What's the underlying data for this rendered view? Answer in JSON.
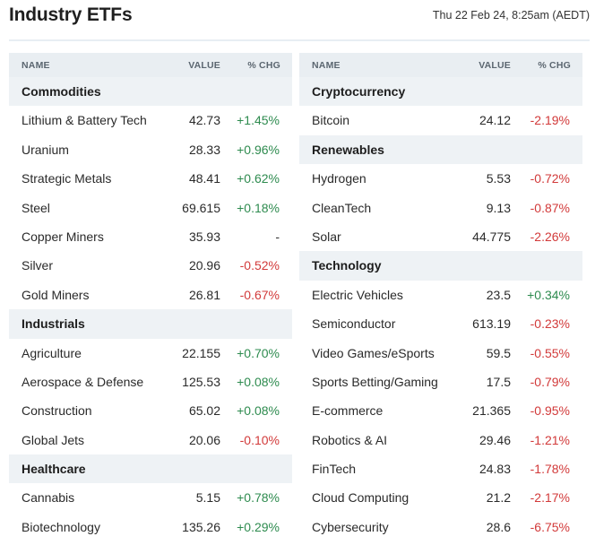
{
  "header": {
    "title": "Industry ETFs",
    "timestamp": "Thu 22 Feb 24, 8:25am (AEDT)"
  },
  "columns": {
    "name": "NAME",
    "value": "VALUE",
    "chg": "% CHG"
  },
  "colors": {
    "positive": "#2e8b4f",
    "negative": "#d23a3a",
    "category_bg": "#eef2f5",
    "header_bg": "#e9eef2"
  },
  "left_table": [
    {
      "type": "category",
      "name": "Commodities"
    },
    {
      "type": "item",
      "name": "Lithium & Battery Tech",
      "value": "42.73",
      "chg": "+1.45%",
      "dir": "pos"
    },
    {
      "type": "item",
      "name": "Uranium",
      "value": "28.33",
      "chg": "+0.96%",
      "dir": "pos"
    },
    {
      "type": "item",
      "name": "Strategic Metals",
      "value": "48.41",
      "chg": "+0.62%",
      "dir": "pos"
    },
    {
      "type": "item",
      "name": "Steel",
      "value": "69.615",
      "chg": "+0.18%",
      "dir": "pos"
    },
    {
      "type": "item",
      "name": "Copper Miners",
      "value": "35.93",
      "chg": "-",
      "dir": "neu"
    },
    {
      "type": "item",
      "name": "Silver",
      "value": "20.96",
      "chg": "-0.52%",
      "dir": "neg"
    },
    {
      "type": "item",
      "name": "Gold Miners",
      "value": "26.81",
      "chg": "-0.67%",
      "dir": "neg"
    },
    {
      "type": "category",
      "name": "Industrials"
    },
    {
      "type": "item",
      "name": "Agriculture",
      "value": "22.155",
      "chg": "+0.70%",
      "dir": "pos"
    },
    {
      "type": "item",
      "name": "Aerospace & Defense",
      "value": "125.53",
      "chg": "+0.08%",
      "dir": "pos"
    },
    {
      "type": "item",
      "name": "Construction",
      "value": "65.02",
      "chg": "+0.08%",
      "dir": "pos"
    },
    {
      "type": "item",
      "name": "Global Jets",
      "value": "20.06",
      "chg": "-0.10%",
      "dir": "neg"
    },
    {
      "type": "category",
      "name": "Healthcare"
    },
    {
      "type": "item",
      "name": "Cannabis",
      "value": "5.15",
      "chg": "+0.78%",
      "dir": "pos"
    },
    {
      "type": "item",
      "name": "Biotechnology",
      "value": "135.26",
      "chg": "+0.29%",
      "dir": "pos"
    }
  ],
  "right_table": [
    {
      "type": "category",
      "name": "Cryptocurrency"
    },
    {
      "type": "item",
      "name": "Bitcoin",
      "value": "24.12",
      "chg": "-2.19%",
      "dir": "neg"
    },
    {
      "type": "category",
      "name": "Renewables"
    },
    {
      "type": "item",
      "name": "Hydrogen",
      "value": "5.53",
      "chg": "-0.72%",
      "dir": "neg"
    },
    {
      "type": "item",
      "name": "CleanTech",
      "value": "9.13",
      "chg": "-0.87%",
      "dir": "neg"
    },
    {
      "type": "item",
      "name": "Solar",
      "value": "44.775",
      "chg": "-2.26%",
      "dir": "neg"
    },
    {
      "type": "category",
      "name": "Technology"
    },
    {
      "type": "item",
      "name": "Electric Vehicles",
      "value": "23.5",
      "chg": "+0.34%",
      "dir": "pos"
    },
    {
      "type": "item",
      "name": "Semiconductor",
      "value": "613.19",
      "chg": "-0.23%",
      "dir": "neg"
    },
    {
      "type": "item",
      "name": "Video Games/eSports",
      "value": "59.5",
      "chg": "-0.55%",
      "dir": "neg"
    },
    {
      "type": "item",
      "name": "Sports Betting/Gaming",
      "value": "17.5",
      "chg": "-0.79%",
      "dir": "neg"
    },
    {
      "type": "item",
      "name": "E-commerce",
      "value": "21.365",
      "chg": "-0.95%",
      "dir": "neg"
    },
    {
      "type": "item",
      "name": "Robotics & AI",
      "value": "29.46",
      "chg": "-1.21%",
      "dir": "neg"
    },
    {
      "type": "item",
      "name": "FinTech",
      "value": "24.83",
      "chg": "-1.78%",
      "dir": "neg"
    },
    {
      "type": "item",
      "name": "Cloud Computing",
      "value": "21.2",
      "chg": "-2.17%",
      "dir": "neg"
    },
    {
      "type": "item",
      "name": "Cybersecurity",
      "value": "28.6",
      "chg": "-6.75%",
      "dir": "neg"
    }
  ]
}
